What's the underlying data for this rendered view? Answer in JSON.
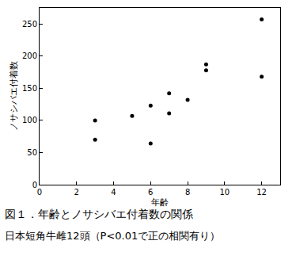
{
  "chart_data": {
    "type": "scatter",
    "title": "図１．年齢とノサシバエ付着数の関係",
    "subtitle": "日本短角牛雌12頭（P<0.01で正の相関有り）",
    "x_label": "年齢",
    "y_label": "ノサシバエ付着数",
    "x": [
      3,
      3,
      5,
      6,
      6,
      7,
      7,
      8,
      9,
      9,
      12,
      12
    ],
    "values": [
      100,
      70,
      107,
      123,
      64,
      142,
      111,
      132,
      187,
      178,
      257,
      168
    ],
    "color": "#000000",
    "marker": "circle",
    "xlim": [
      0,
      13
    ],
    "xticks": [
      0,
      2,
      4,
      6,
      8,
      10,
      12
    ],
    "ylim": [
      0,
      275
    ],
    "yticks": [
      0,
      50,
      100,
      150,
      200,
      250
    ],
    "grid": false
  }
}
